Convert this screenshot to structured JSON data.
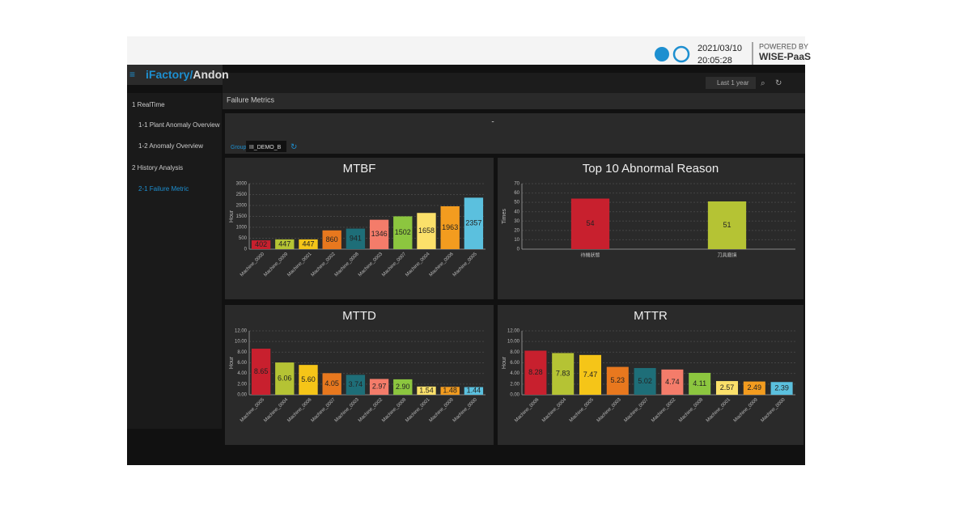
{
  "header": {
    "logo": [
      "iFactory/",
      "Andon"
    ],
    "date": "2021/03/10",
    "time": "20:05:28",
    "powered_by": "POWERED BY",
    "brand": "WISE-PaaS",
    "range": "Last 1 year"
  },
  "sidebar": [
    "1 RealTime",
    "1-1 Plant Anomaly Overview",
    "1-2 Anomaly Overview",
    "2 History Analysis",
    "2-1 Failure Metric"
  ],
  "page": {
    "title": "Failure Metrics",
    "subtitle": "-",
    "group_label": "Group",
    "group_value": "III_DEMO_B"
  },
  "chart_data": [
    {
      "type": "bar",
      "title": "MTBF",
      "ylabel": "Hour",
      "categories": [
        "Machine_0000",
        "Machine_0009",
        "Machine_0001",
        "Machine_0002",
        "Machine_0008",
        "Machine_0003",
        "Machine_0007",
        "Machine_0004",
        "Machine_0006",
        "Machine_0005"
      ],
      "values": [
        402,
        447,
        447,
        860,
        941,
        1346,
        1502,
        1658,
        1963,
        2357
      ],
      "colors": [
        "#c8202e",
        "#b5c334",
        "#f5c518",
        "#e8781e",
        "#1e6e78",
        "#f47c6a",
        "#8cc63f",
        "#fbe06a",
        "#f39c1f",
        "#5bc0de"
      ],
      "ylim": [
        0,
        3000
      ],
      "yticks": [
        0,
        500,
        1000,
        1500,
        2000,
        2500,
        3000
      ],
      "grid": true
    },
    {
      "type": "bar",
      "title": "Top 10 Abnormal Reason",
      "ylabel": "Times",
      "categories": [
        "待機狀態",
        "刀具磨損"
      ],
      "values": [
        54,
        51
      ],
      "colors": [
        "#c8202e",
        "#b5c334"
      ],
      "ylim": [
        0,
        70
      ],
      "yticks": [
        0,
        10,
        20,
        30,
        40,
        50,
        60,
        70
      ],
      "grid": true
    },
    {
      "type": "bar",
      "title": "MTTD",
      "ylabel": "Hour",
      "categories": [
        "Machine_0005",
        "Machine_0004",
        "Machine_0006",
        "Machine_0007",
        "Machine_0003",
        "Machine_0002",
        "Machine_0008",
        "Machine_0001",
        "Machine_0009",
        "Machine_0000"
      ],
      "values": [
        8.65,
        6.06,
        5.6,
        4.05,
        3.74,
        2.97,
        2.9,
        1.54,
        1.48,
        1.44
      ],
      "value_labels": [
        "8.65",
        "6.06",
        "5.60",
        "4.05",
        "3.74",
        "2.97",
        "2.90",
        "1.54",
        "1.48",
        "1.44"
      ],
      "colors": [
        "#c8202e",
        "#b5c334",
        "#f5c518",
        "#e8781e",
        "#1e6e78",
        "#f47c6a",
        "#8cc63f",
        "#fbe06a",
        "#f39c1f",
        "#5bc0de"
      ],
      "ylim": [
        0,
        12
      ],
      "yticks": [
        {
          "value": 0,
          "label": "0.00"
        },
        {
          "value": 2,
          "label": "2.00"
        },
        {
          "value": 4,
          "label": "4.00"
        },
        {
          "value": 6,
          "label": "6.00"
        },
        {
          "value": 8,
          "label": "8.00"
        },
        {
          "value": 10,
          "label": "10.00"
        },
        {
          "value": 12,
          "label": "12.00"
        }
      ],
      "grid": true
    },
    {
      "type": "bar",
      "title": "MTTR",
      "ylabel": "Hour",
      "categories": [
        "Machine_0006",
        "Machine_0004",
        "Machine_0005",
        "Machine_0003",
        "Machine_0007",
        "Machine_0002",
        "Machine_0008",
        "Machine_0001",
        "Machine_0009",
        "Machine_0000"
      ],
      "values": [
        8.28,
        7.83,
        7.47,
        5.23,
        5.02,
        4.74,
        4.11,
        2.57,
        2.49,
        2.39
      ],
      "colors": [
        "#c8202e",
        "#b5c334",
        "#f5c518",
        "#e8781e",
        "#1e6e78",
        "#f47c6a",
        "#8cc63f",
        "#fbe06a",
        "#f39c1f",
        "#5bc0de"
      ],
      "ylim": [
        0,
        12
      ],
      "yticks": [
        {
          "value": 0,
          "label": "0.00"
        },
        {
          "value": 2,
          "label": "2.00"
        },
        {
          "value": 4,
          "label": "4.00"
        },
        {
          "value": 6,
          "label": "6.00"
        },
        {
          "value": 8,
          "label": "8.00"
        },
        {
          "value": 10,
          "label": "10.00"
        },
        {
          "value": 12,
          "label": "12.00"
        }
      ],
      "grid": true
    }
  ]
}
